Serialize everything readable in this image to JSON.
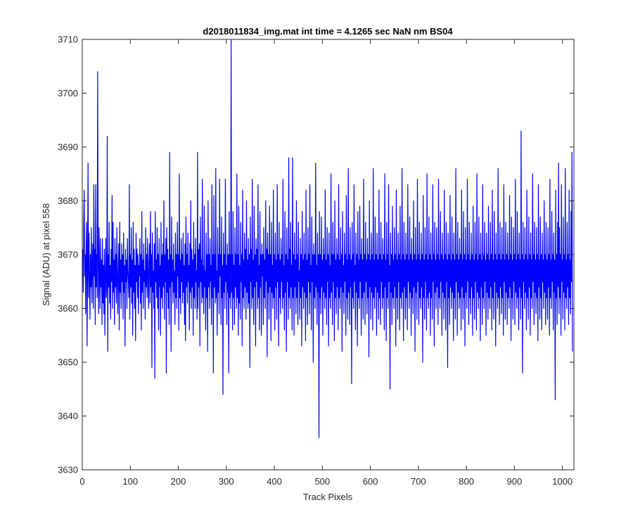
{
  "chart_data": {
    "type": "line",
    "title": "d2018011834_img.mat int time = 4.1265 sec  NaN nm BS04",
    "xlabel": "Track Pixels",
    "ylabel": "Signal (ADU) at pixel 558",
    "xlim": [
      0,
      1024
    ],
    "ylim": [
      3630,
      3710
    ],
    "xticks": [
      0,
      100,
      200,
      300,
      400,
      500,
      600,
      700,
      800,
      900,
      1000
    ],
    "yticks": [
      3630,
      3640,
      3650,
      3660,
      3670,
      3680,
      3690,
      3700,
      3710
    ],
    "grid": false,
    "legend": "none",
    "series_color": "#0000ff",
    "series": [
      {
        "x_start": 1,
        "x_step": 1,
        "summary": {
          "count": 1024,
          "mean_approx": 3667,
          "min_approx": 3636,
          "max_approx": 3710
        },
        "values": [
          3671,
          3663,
          3676,
          3682,
          3666,
          3670,
          3659,
          3672,
          3676,
          3653,
          3668,
          3687,
          3662,
          3674,
          3666,
          3658,
          3670,
          3664,
          3675,
          3661,
          3668,
          3672,
          3660,
          3683,
          3666,
          3671,
          3657,
          3683,
          3664,
          3670,
          3662,
          3704,
          3669,
          3659,
          3675,
          3666,
          3660,
          3673,
          3664,
          3669,
          3657,
          3673,
          3661,
          3668,
          3659,
          3671,
          3655,
          3666,
          3673,
          3662,
          3664,
          3692,
          3652,
          3670,
          3664,
          3676,
          3661,
          3668,
          3658,
          3671,
          3665,
          3681,
          3660,
          3676,
          3663,
          3669,
          3657,
          3673,
          3664,
          3670,
          3661,
          3675,
          3666,
          3659,
          3668,
          3672,
          3656,
          3676,
          3663,
          3669,
          3660,
          3672,
          3665,
          3670,
          3658,
          3674,
          3663,
          3668,
          3653,
          3671,
          3665,
          3669,
          3660,
          3673,
          3667,
          3665,
          3662,
          3683,
          3658,
          3670,
          3664,
          3675,
          3661,
          3669,
          3655,
          3676,
          3663,
          3671,
          3660,
          3668,
          3654,
          3674,
          3665,
          3671,
          3662,
          3670,
          3659,
          3668,
          3666,
          3673,
          3661,
          3670,
          3656,
          3678,
          3663,
          3669,
          3660,
          3672,
          3665,
          3667,
          3658,
          3675,
          3664,
          3670,
          3662,
          3673,
          3666,
          3660,
          3669,
          3672,
          3661,
          3678,
          3664,
          3670,
          3649,
          3674,
          3663,
          3667,
          3660,
          3672,
          3647,
          3678,
          3665,
          3669,
          3662,
          3675,
          3660,
          3670,
          3656,
          3673,
          3664,
          3668,
          3655,
          3676,
          3662,
          3670,
          3660,
          3672,
          3664,
          3680,
          3658,
          3670,
          3665,
          3673,
          3648,
          3675,
          3663,
          3671,
          3660,
          3669,
          3657,
          3689,
          3664,
          3670,
          3652,
          3677,
          3665,
          3669,
          3661,
          3672,
          3663,
          3667,
          3657,
          3674,
          3662,
          3670,
          3660,
          3676,
          3666,
          3670,
          3656,
          3685,
          3662,
          3669,
          3659,
          3673,
          3665,
          3670,
          3661,
          3674,
          3663,
          3668,
          3657,
          3672,
          3654,
          3677,
          3664,
          3670,
          3661,
          3674,
          3665,
          3668,
          3656,
          3672,
          3663,
          3680,
          3660,
          3671,
          3664,
          3669,
          3655,
          3676,
          3662,
          3670,
          3660,
          3673,
          3665,
          3667,
          3658,
          3689,
          3660,
          3671,
          3664,
          3672,
          3653,
          3677,
          3665,
          3669,
          3661,
          3684,
          3662,
          3668,
          3659,
          3679,
          3664,
          3667,
          3656,
          3674,
          3662,
          3670,
          3652,
          3680,
          3664,
          3670,
          3660,
          3673,
          3665,
          3668,
          3657,
          3683,
          3662,
          3670,
          3648,
          3681,
          3664,
          3670,
          3661,
          3686,
          3662,
          3667,
          3655,
          3675,
          3663,
          3670,
          3659,
          3684,
          3666,
          3670,
          3657,
          3677,
          3662,
          3668,
          3644,
          3674,
          3663,
          3670,
          3660,
          3684,
          3665,
          3668,
          3657,
          3672,
          3663,
          3670,
          3648,
          3678,
          3662,
          3670,
          3660,
          3710,
          3663,
          3670,
          3656,
          3678,
          3662,
          3668,
          3657,
          3675,
          3664,
          3670,
          3660,
          3685,
          3662,
          3670,
          3655,
          3679,
          3661,
          3668,
          3658,
          3676,
          3665,
          3670,
          3653,
          3682,
          3662,
          3669,
          3660,
          3674,
          3664,
          3671,
          3658,
          3680,
          3663,
          3669,
          3660,
          3673,
          3661,
          3670,
          3649,
          3677,
          3665,
          3671,
          3660,
          3684,
          3662,
          3669,
          3657,
          3679,
          3664,
          3670,
          3653,
          3673,
          3665,
          3671,
          3660,
          3683,
          3662,
          3668,
          3656,
          3678,
          3664,
          3670,
          3655,
          3672,
          3666,
          3670,
          3657,
          3675,
          3662,
          3669,
          3660,
          3680,
          3665,
          3671,
          3651,
          3674,
          3663,
          3670,
          3658,
          3679,
          3664,
          3670,
          3654,
          3676,
          3663,
          3668,
          3660,
          3682,
          3662,
          3670,
          3656,
          3674,
          3664,
          3669,
          3658,
          3683,
          3665,
          3670,
          3653,
          3676,
          3662,
          3669,
          3659,
          3673,
          3665,
          3670,
          3660,
          3684,
          3662,
          3668,
          3656,
          3678,
          3663,
          3670,
          3652,
          3675,
          3665,
          3669,
          3658,
          3688,
          3662,
          3671,
          3660,
          3676,
          3664,
          3668,
          3656,
          3688,
          3662,
          3670,
          3655,
          3674,
          3664,
          3669,
          3659,
          3680,
          3662,
          3670,
          3657,
          3676,
          3665,
          3667,
          3658,
          3673,
          3662,
          3670,
          3653,
          3678,
          3664,
          3669,
          3660,
          3674,
          3663,
          3670,
          3654,
          3682,
          3662,
          3669,
          3657,
          3675,
          3665,
          3670,
          3659,
          3683,
          3663,
          3668,
          3656,
          3677,
          3665,
          3670,
          3650,
          3672,
          3662,
          3670,
          3660,
          3687,
          3664,
          3668,
          3657,
          3674,
          3663,
          3670,
          3636,
          3678,
          3662,
          3670,
          3659,
          3677,
          3664,
          3669,
          3655,
          3673,
          3663,
          3670,
          3660,
          3682,
          3662,
          3669,
          3657,
          3675,
          3665,
          3670,
          3653,
          3674,
          3662,
          3668,
          3660,
          3685,
          3663,
          3670,
          3657,
          3676,
          3665,
          3670,
          3654,
          3680,
          3662,
          3669,
          3659,
          3673,
          3664,
          3670,
          3656,
          3683,
          3662,
          3669,
          3660,
          3675,
          3664,
          3670,
          3652,
          3678,
          3663,
          3668,
          3659,
          3674,
          3665,
          3670,
          3655,
          3681,
          3662,
          3669,
          3658,
          3686,
          3663,
          3670,
          3657,
          3675,
          3664,
          3669,
          3646,
          3676,
          3662,
          3670,
          3660,
          3683,
          3665,
          3668,
          3656,
          3674,
          3663,
          3670,
          3653,
          3678,
          3662,
          3669,
          3660,
          3679,
          3665,
          3670,
          3655,
          3673,
          3662,
          3669,
          3658,
          3684,
          3663,
          3670,
          3657,
          3676,
          3665,
          3669,
          3659,
          3673,
          3662,
          3670,
          3651,
          3680,
          3664,
          3669,
          3658,
          3674,
          3663,
          3670,
          3656,
          3686,
          3662,
          3669,
          3660,
          3677,
          3664,
          3670,
          3655,
          3674,
          3663,
          3669,
          3658,
          3682,
          3662,
          3670,
          3657,
          3676,
          3665,
          3669,
          3660,
          3673,
          3662,
          3670,
          3656,
          3685,
          3664,
          3669,
          3654,
          3676,
          3662,
          3670,
          3660,
          3683,
          3665,
          3668,
          3645,
          3674,
          3663,
          3670,
          3657,
          3679,
          3662,
          3669,
          3660,
          3675,
          3664,
          3670,
          3653,
          3682,
          3662,
          3669,
          3658,
          3674,
          3665,
          3670,
          3656,
          3679,
          3662,
          3669,
          3660,
          3686,
          3663,
          3670,
          3654,
          3676,
          3664,
          3669,
          3658,
          3674,
          3662,
          3670,
          3656,
          3683,
          3665,
          3669,
          3660,
          3677,
          3663,
          3670,
          3655,
          3673,
          3662,
          3669,
          3659,
          3680,
          3664,
          3670,
          3652,
          3675,
          3663,
          3669,
          3658,
          3684,
          3665,
          3670,
          3657,
          3676,
          3662,
          3669,
          3660,
          3674,
          3664,
          3670,
          3650,
          3681,
          3662,
          3669,
          3658,
          3675,
          3665,
          3670,
          3656,
          3685,
          3662,
          3669,
          3660,
          3677,
          3663,
          3670,
          3655,
          3674,
          3662,
          3669,
          3658,
          3683,
          3665,
          3670,
          3653,
          3676,
          3663,
          3669,
          3660,
          3675,
          3664,
          3670,
          3657,
          3684,
          3662,
          3669,
          3660,
          3678,
          3665,
          3670,
          3655,
          3674,
          3663,
          3669,
          3658,
          3682,
          3662,
          3670,
          3656,
          3676,
          3665,
          3669,
          3649,
          3674,
          3662,
          3670,
          3657,
          3681,
          3664,
          3669,
          3660,
          3677,
          3663,
          3670,
          3654,
          3674,
          3662,
          3669,
          3658,
          3686,
          3665,
          3670,
          3655,
          3676,
          3663,
          3669,
          3660,
          3673,
          3662,
          3670,
          3656,
          3682,
          3664,
          3669,
          3658,
          3678,
          3662,
          3670,
          3653,
          3675,
          3663,
          3669,
          3660,
          3684,
          3665,
          3670,
          3657,
          3676,
          3662,
          3669,
          3659,
          3674,
          3664,
          3670,
          3655,
          3679,
          3662,
          3669,
          3658,
          3676,
          3665,
          3670,
          3656,
          3685,
          3663,
          3669,
          3660,
          3677,
          3662,
          3670,
          3654,
          3674,
          3664,
          3669,
          3657,
          3683,
          3662,
          3670,
          3660,
          3676,
          3665,
          3669,
          3655,
          3674,
          3663,
          3670,
          3658,
          3679,
          3662,
          3669,
          3660,
          3676,
          3664,
          3670,
          3656,
          3682,
          3662,
          3669,
          3658,
          3678,
          3665,
          3670,
          3653,
          3674,
          3663,
          3669,
          3660,
          3686,
          3662,
          3670,
          3657,
          3676,
          3664,
          3669,
          3659,
          3675,
          3662,
          3670,
          3655,
          3683,
          3665,
          3669,
          3658,
          3676,
          3663,
          3670,
          3657,
          3674,
          3662,
          3669,
          3660,
          3681,
          3664,
          3670,
          3654,
          3677,
          3662,
          3669,
          3658,
          3675,
          3665,
          3670,
          3657,
          3684,
          3663,
          3669,
          3660,
          3678,
          3662,
          3670,
          3656,
          3674,
          3664,
          3669,
          3658,
          3693,
          3662,
          3670,
          3648,
          3676,
          3665,
          3669,
          3660,
          3675,
          3663,
          3670,
          3656,
          3682,
          3662,
          3669,
          3658,
          3677,
          3664,
          3670,
          3655,
          3674,
          3662,
          3669,
          3660,
          3685,
          3665,
          3670,
          3657,
          3676,
          3663,
          3669,
          3659,
          3675,
          3662,
          3670,
          3654,
          3683,
          3664,
          3669,
          3658,
          3677,
          3662,
          3670,
          3656,
          3674,
          3665,
          3669,
          3660,
          3680,
          3663,
          3670,
          3657,
          3676,
          3662,
          3669,
          3658,
          3675,
          3664,
          3670,
          3655,
          3684,
          3662,
          3669,
          3660,
          3678,
          3665,
          3670,
          3656,
          3674,
          3663,
          3669,
          3643,
          3682,
          3662,
          3670,
          3657,
          3676,
          3664,
          3687,
          3659,
          3675,
          3662,
          3670,
          3655,
          3683,
          3665,
          3669,
          3658,
          3677,
          3663,
          3670,
          3656,
          3686,
          3662,
          3669,
          3660,
          3676,
          3664,
          3670,
          3657,
          3682,
          3662,
          3669,
          3659,
          3678,
          3665,
          3689,
          3652
        ]
      }
    ]
  }
}
